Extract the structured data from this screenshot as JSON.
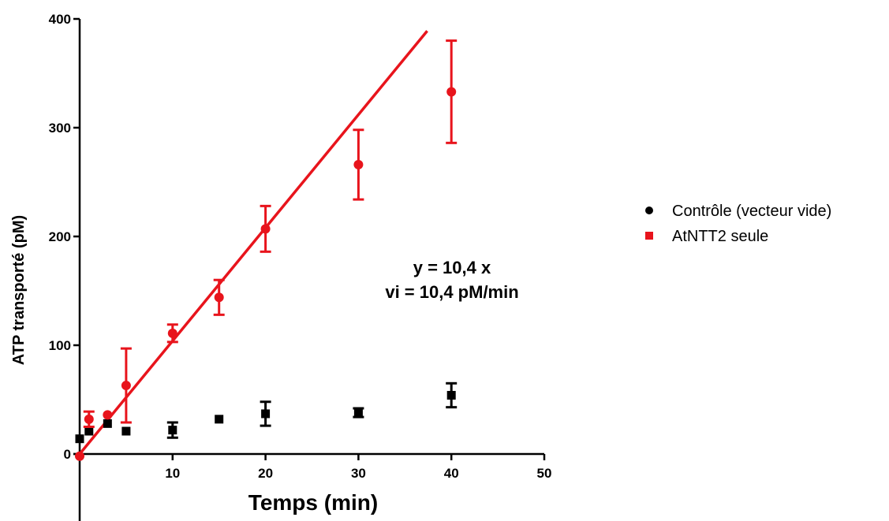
{
  "chart_data": {
    "type": "scatter",
    "xlabel": "Temps (min)",
    "ylabel": "ATP transporté (pM)",
    "xlim": [
      0,
      50
    ],
    "ylim": [
      0,
      400
    ],
    "x_ticks": [
      0,
      10,
      20,
      30,
      40,
      50
    ],
    "y_ticks": [
      0,
      100,
      200,
      300,
      400
    ],
    "x_tick_labels": [
      "",
      "10",
      "20",
      "30",
      "40",
      "50"
    ],
    "y_tick_labels": [
      "0",
      "100",
      "200",
      "300",
      "400"
    ],
    "grid": false,
    "legend_position": "right",
    "series": [
      {
        "name": "Contrôle (vecteur vide)",
        "legend_marker": "circle",
        "plot_marker": "square",
        "color": "#000000",
        "points": [
          {
            "x": 0,
            "y": 14,
            "err": 0
          },
          {
            "x": 1,
            "y": 21,
            "err": 0
          },
          {
            "x": 3,
            "y": 28,
            "err": 0
          },
          {
            "x": 5,
            "y": 21,
            "err": 0
          },
          {
            "x": 10,
            "y": 22,
            "err": 7
          },
          {
            "x": 15,
            "y": 32,
            "err": 0
          },
          {
            "x": 20,
            "y": 37,
            "err": 11
          },
          {
            "x": 30,
            "y": 38,
            "err": 4
          },
          {
            "x": 40,
            "y": 54,
            "err": 11
          }
        ]
      },
      {
        "name": "AtNTT2 seule",
        "legend_marker": "square",
        "plot_marker": "circle",
        "color": "#e8141c",
        "points": [
          {
            "x": 0,
            "y": -2,
            "err": 0
          },
          {
            "x": 1,
            "y": 32,
            "err": 7
          },
          {
            "x": 3,
            "y": 36,
            "err": 0
          },
          {
            "x": 5,
            "y": 63,
            "err": 34
          },
          {
            "x": 10,
            "y": 111,
            "err": 8
          },
          {
            "x": 15,
            "y": 144,
            "err": 16
          },
          {
            "x": 20,
            "y": 207,
            "err": 21
          },
          {
            "x": 30,
            "y": 266,
            "err": 32
          },
          {
            "x": 40,
            "y": 333,
            "err": 47
          }
        ],
        "fit": {
          "slope": 10.4,
          "intercept": 0,
          "x_range": [
            0,
            37.4
          ]
        }
      }
    ],
    "annotations": [
      "y = 10,4 x",
      "vi = 10,4 pM/min"
    ]
  }
}
